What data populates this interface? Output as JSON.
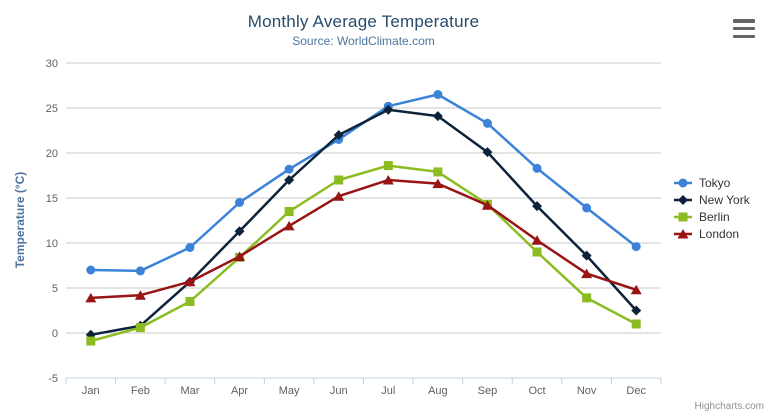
{
  "chart_data": {
    "type": "line",
    "title": "Monthly Average Temperature",
    "subtitle": "Source: WorldClimate.com",
    "categories": [
      "Jan",
      "Feb",
      "Mar",
      "Apr",
      "May",
      "Jun",
      "Jul",
      "Aug",
      "Sep",
      "Oct",
      "Nov",
      "Dec"
    ],
    "series": [
      {
        "name": "Tokyo",
        "color": "#3b82d8",
        "marker": "circle",
        "values": [
          7.0,
          6.9,
          9.5,
          14.5,
          18.2,
          21.5,
          25.2,
          26.5,
          23.3,
          18.3,
          13.9,
          9.6
        ]
      },
      {
        "name": "New York",
        "color": "#0d233a",
        "marker": "diamond",
        "values": [
          -0.2,
          0.8,
          5.7,
          11.3,
          17.0,
          22.0,
          24.8,
          24.1,
          20.1,
          14.1,
          8.6,
          2.5
        ]
      },
      {
        "name": "Berlin",
        "color": "#8bbc21",
        "marker": "square",
        "values": [
          -0.9,
          0.6,
          3.5,
          8.4,
          13.5,
          17.0,
          18.6,
          17.9,
          14.3,
          9.0,
          3.9,
          1.0
        ]
      },
      {
        "name": "London",
        "color": "#991414",
        "marker": "triangle",
        "values": [
          3.9,
          4.2,
          5.7,
          8.5,
          11.9,
          15.2,
          17.0,
          16.6,
          14.2,
          10.3,
          6.6,
          4.8
        ]
      }
    ],
    "xlabel": "",
    "ylabel": "Temperature (°C)",
    "ylim": [
      -5,
      30
    ],
    "y_ticks": [
      -5,
      0,
      5,
      10,
      15,
      20,
      25,
      30
    ],
    "y_tick_interval": 5,
    "grid": true,
    "legend_position": "right"
  },
  "credits": {
    "label": "Highcharts.com"
  },
  "colors": {
    "title": "#274b6d",
    "subtitle": "#4d759e",
    "axis_label": "#606060",
    "axis_title": "#4d759e",
    "grid": "#c8c8c8",
    "axis_line": "#c0d0e0",
    "legend_text": "#333333",
    "credit": "#909090",
    "menu_icon": "#666666",
    "background": "#ffffff"
  }
}
